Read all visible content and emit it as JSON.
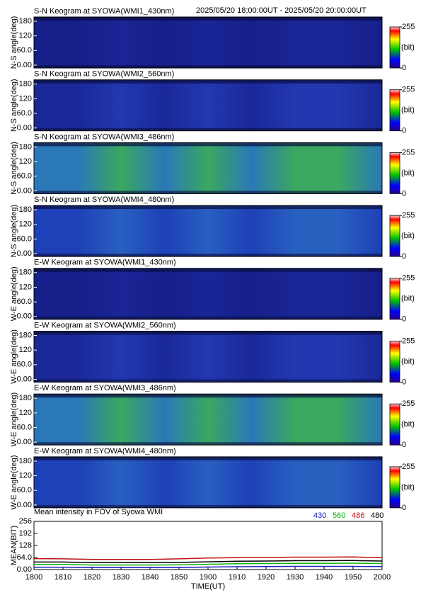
{
  "time_range": "2025/05/20 18:00:00UT - 2025/05/20 20:00:00UT",
  "chart_data": [
    {
      "type": "keogram",
      "title": "S-N Keogram at SYOWA(WMI1_430nm)",
      "y_label": "N-S angle(deg)",
      "ylim": [
        0,
        180
      ],
      "yticks": [
        {
          "value": 0,
          "label": "0.00"
        },
        {
          "value": 60,
          "label": "60.0"
        },
        120,
        180
      ],
      "colors": [
        "#16208a",
        "#1a2596"
      ],
      "clim": [
        0,
        255
      ],
      "cticks": [
        0,
        255
      ],
      "colorbar_label": "(bit)"
    },
    {
      "type": "keogram",
      "title": "S-N Keogram at SYOWA(WMI2_560nm)",
      "y_label": "N-S angle(deg)",
      "ylim": [
        0,
        180
      ],
      "yticks": [
        {
          "value": 0,
          "label": "0.00"
        },
        {
          "value": 60,
          "label": "60.0"
        },
        120,
        180
      ],
      "colors": [
        "#1a2898",
        "#2238b0"
      ],
      "clim": [
        0,
        255
      ],
      "cticks": [
        0,
        255
      ],
      "colorbar_label": "(bit)"
    },
    {
      "type": "keogram",
      "title": "S-N Keogram at SYOWA(WMI3_486nm)",
      "y_label": "N-S angle(deg)",
      "ylim": [
        0,
        180
      ],
      "yticks": [
        {
          "value": 0,
          "label": "0.00"
        },
        {
          "value": 60,
          "label": "60.0"
        },
        120,
        180
      ],
      "colors": [
        "#2a78b8",
        "#3aa860"
      ],
      "clim": [
        0,
        255
      ],
      "cticks": [
        0,
        255
      ],
      "colorbar_label": "(bit)"
    },
    {
      "type": "keogram",
      "title": "S-N Keogram at SYOWA(WMI4_480nm)",
      "y_label": "N-S angle(deg)",
      "ylim": [
        0,
        180
      ],
      "yticks": [
        {
          "value": 0,
          "label": "0.00"
        },
        {
          "value": 60,
          "label": "60.0"
        },
        120,
        180
      ],
      "colors": [
        "#1e40b8",
        "#2860c0"
      ],
      "clim": [
        0,
        255
      ],
      "cticks": [
        0,
        255
      ],
      "colorbar_label": "(bit)"
    },
    {
      "type": "keogram",
      "title": "E-W Keogram at SYOWA(WMI1_430nm)",
      "y_label": "W-E angle(deg)",
      "ylim": [
        0,
        180
      ],
      "yticks": [
        {
          "value": 0,
          "label": "0.00"
        },
        {
          "value": 60,
          "label": "60.0"
        },
        120,
        180
      ],
      "colors": [
        "#16208a",
        "#1a2596"
      ],
      "clim": [
        0,
        255
      ],
      "cticks": [
        0,
        255
      ],
      "colorbar_label": "(bit)"
    },
    {
      "type": "keogram",
      "title": "E-W Keogram at SYOWA(WMI2_560nm)",
      "y_label": "W-E angle(deg)",
      "ylim": [
        0,
        180
      ],
      "yticks": [
        {
          "value": 0,
          "label": "0.00"
        },
        {
          "value": 60,
          "label": "60.0"
        },
        120,
        180
      ],
      "colors": [
        "#1a2898",
        "#2238b0"
      ],
      "clim": [
        0,
        255
      ],
      "cticks": [
        0,
        255
      ],
      "colorbar_label": "(bit)"
    },
    {
      "type": "keogram",
      "title": "E-W Keogram at SYOWA(WMI3_486nm)",
      "y_label": "W-E angle(deg)",
      "ylim": [
        0,
        180
      ],
      "yticks": [
        {
          "value": 0,
          "label": "0.00"
        },
        {
          "value": 60,
          "label": "60.0"
        },
        120,
        180
      ],
      "colors": [
        "#2a78b8",
        "#3aa860"
      ],
      "clim": [
        0,
        255
      ],
      "cticks": [
        0,
        255
      ],
      "colorbar_label": "(bit)"
    },
    {
      "type": "keogram",
      "title": "E-W Keogram at SYOWA(WMI4_480nm)",
      "y_label": "W-E angle(deg)",
      "ylim": [
        0,
        180
      ],
      "yticks": [
        {
          "value": 0,
          "label": "0.00"
        },
        {
          "value": 60,
          "label": "60.0"
        },
        120,
        180
      ],
      "colors": [
        "#1e40b8",
        "#2860c0"
      ],
      "clim": [
        0,
        255
      ],
      "cticks": [
        0,
        255
      ],
      "colorbar_label": "(bit)"
    },
    {
      "type": "line",
      "title": "Mean intensity in FOV of Syowa WMI",
      "x_label": "TIME(UT)",
      "y_label": "MEAN(BIT)",
      "categories": [
        "1800",
        "1810",
        "1820",
        "1830",
        "1840",
        "1850",
        "1900",
        "1910",
        "1920",
        "1930",
        "1940",
        "1950",
        "2000"
      ],
      "ylim": [
        0,
        256
      ],
      "yticks": [
        {
          "value": 0,
          "label": "0.00"
        },
        {
          "value": 64,
          "label": "64.0"
        },
        128,
        192,
        256
      ],
      "series": [
        {
          "name": "430",
          "color": "#2020c0",
          "values": [
            12,
            12,
            10,
            10,
            10,
            11,
            13,
            15,
            16,
            17,
            17,
            17,
            16
          ]
        },
        {
          "name": "560",
          "color": "#10b010",
          "values": [
            27,
            27,
            24,
            24,
            24,
            25,
            28,
            31,
            32,
            33,
            33,
            34,
            32
          ]
        },
        {
          "name": "486",
          "color": "#c01010",
          "values": [
            58,
            57,
            54,
            54,
            54,
            57,
            61,
            63,
            64,
            66,
            66,
            67,
            63
          ]
        },
        {
          "name": "480",
          "color": "#000000",
          "values": [
            40,
            40,
            37,
            37,
            37,
            38,
            41,
            44,
            45,
            47,
            47,
            48,
            45
          ]
        }
      ]
    }
  ]
}
